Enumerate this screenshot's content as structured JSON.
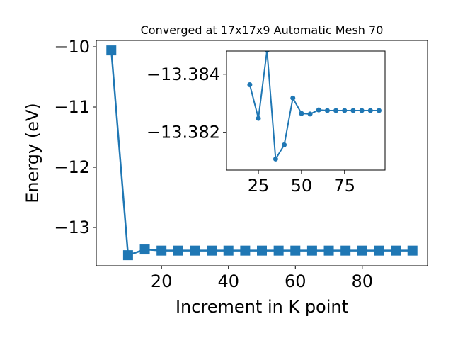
{
  "chart_data": [
    {
      "type": "line",
      "title": "Converged at 17x17x9 Automatic Mesh 70",
      "x_label": "Increment in K point",
      "y_label": "Energy (eV)",
      "x": [
        5,
        10,
        15,
        20,
        25,
        30,
        35,
        40,
        45,
        50,
        55,
        60,
        65,
        70,
        75,
        80,
        85,
        90,
        95
      ],
      "series": [
        {
          "color": "#1f77b4",
          "marker": "square",
          "values": [
            -10.06,
            -13.46,
            -13.365,
            -13.384,
            -13.384,
            -13.384,
            -13.384,
            -13.384,
            -13.384,
            -13.384,
            -13.384,
            -13.384,
            -13.384,
            -13.384,
            -13.384,
            -13.384,
            -13.384,
            -13.384,
            -13.384
          ]
        }
      ],
      "xlim": [
        0.5,
        99.5
      ],
      "xticks": [
        20,
        40,
        60,
        80
      ],
      "ylim": [
        -13.635,
        -9.894
      ],
      "yticks": [
        -10,
        -11,
        -12,
        -13
      ]
    },
    {
      "type": "line",
      "x": [
        20,
        25,
        30,
        35,
        40,
        45,
        50,
        55,
        60,
        65,
        70,
        75,
        80,
        85,
        90,
        95
      ],
      "series": [
        {
          "color": "#1f77b4",
          "marker": "circle",
          "values": [
            -13.38364,
            -13.38248,
            -13.38482,
            -13.38108,
            -13.38157,
            -13.38318,
            -13.38265,
            -13.38263,
            -13.38277,
            -13.38275,
            -13.38275,
            -13.38275,
            -13.38275,
            -13.38275,
            -13.38275,
            -13.38275
          ]
        }
      ],
      "xlim": [
        6.5,
        98.5
      ],
      "xticks": [
        25,
        50,
        75
      ],
      "ylim": [
        -13.3807,
        -13.3848
      ],
      "yticks": [
        -13.384,
        -13.382
      ]
    }
  ]
}
